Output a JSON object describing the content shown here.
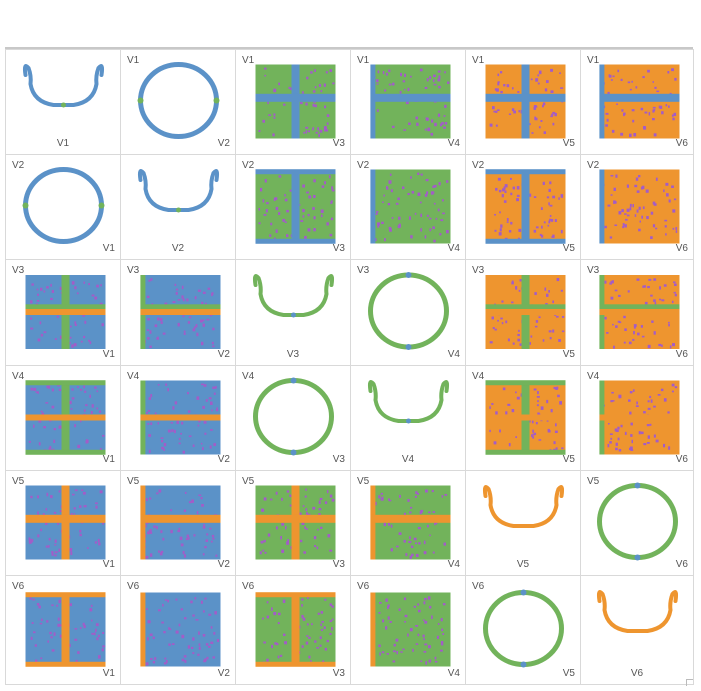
{
  "chart_data": {
    "type": "scatter-matrix",
    "variables": [
      "V1",
      "V2",
      "V3",
      "V4",
      "V5",
      "V6"
    ],
    "colors": {
      "V1": "#5b92c8",
      "V2": "#5b92c8",
      "V3": "#72b35b",
      "V4": "#72b35b",
      "V5": "#ee952f",
      "V6": "#ee952f",
      "highlight": "#a35cc8",
      "accent_orange": "#ee952f"
    },
    "grid": false,
    "legend": "none"
  }
}
